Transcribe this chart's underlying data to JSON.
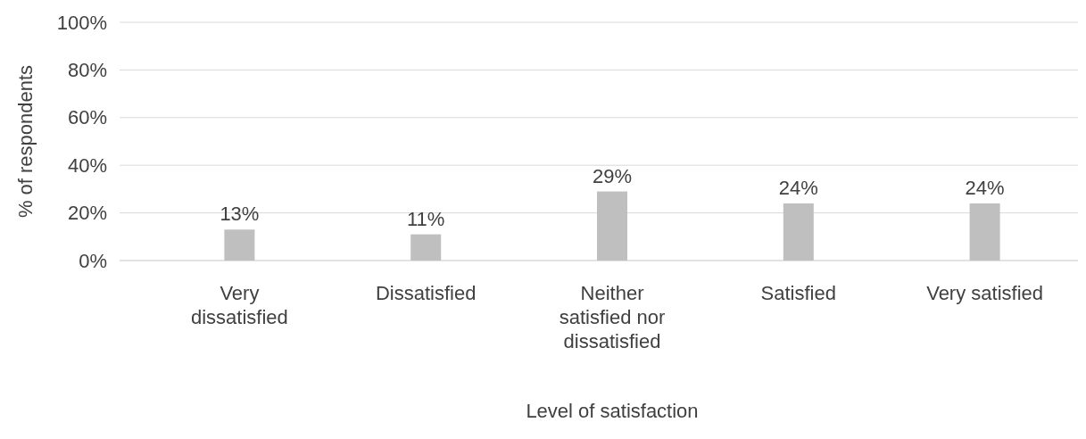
{
  "chart_data": {
    "type": "bar",
    "xlabel": "Level of satisfaction",
    "ylabel": "% of respondents",
    "categories": [
      "Very dissatisfied",
      "Dissatisfied",
      "Neither satisfied nor dissatisfied",
      "Satisfied",
      "Very satisfied"
    ],
    "values": [
      13,
      11,
      29,
      24,
      24
    ],
    "value_labels": [
      "13%",
      "11%",
      "29%",
      "24%",
      "24%"
    ],
    "color": "#bfbfbf",
    "ylim": [
      0,
      100
    ],
    "yticks": [
      {
        "value": 0,
        "label": "0%"
      },
      {
        "value": 20,
        "label": "20%"
      },
      {
        "value": 40,
        "label": "40%"
      },
      {
        "value": 60,
        "label": "60%"
      },
      {
        "value": 80,
        "label": "80%"
      },
      {
        "value": 100,
        "label": "100%"
      }
    ],
    "grid": "y"
  }
}
